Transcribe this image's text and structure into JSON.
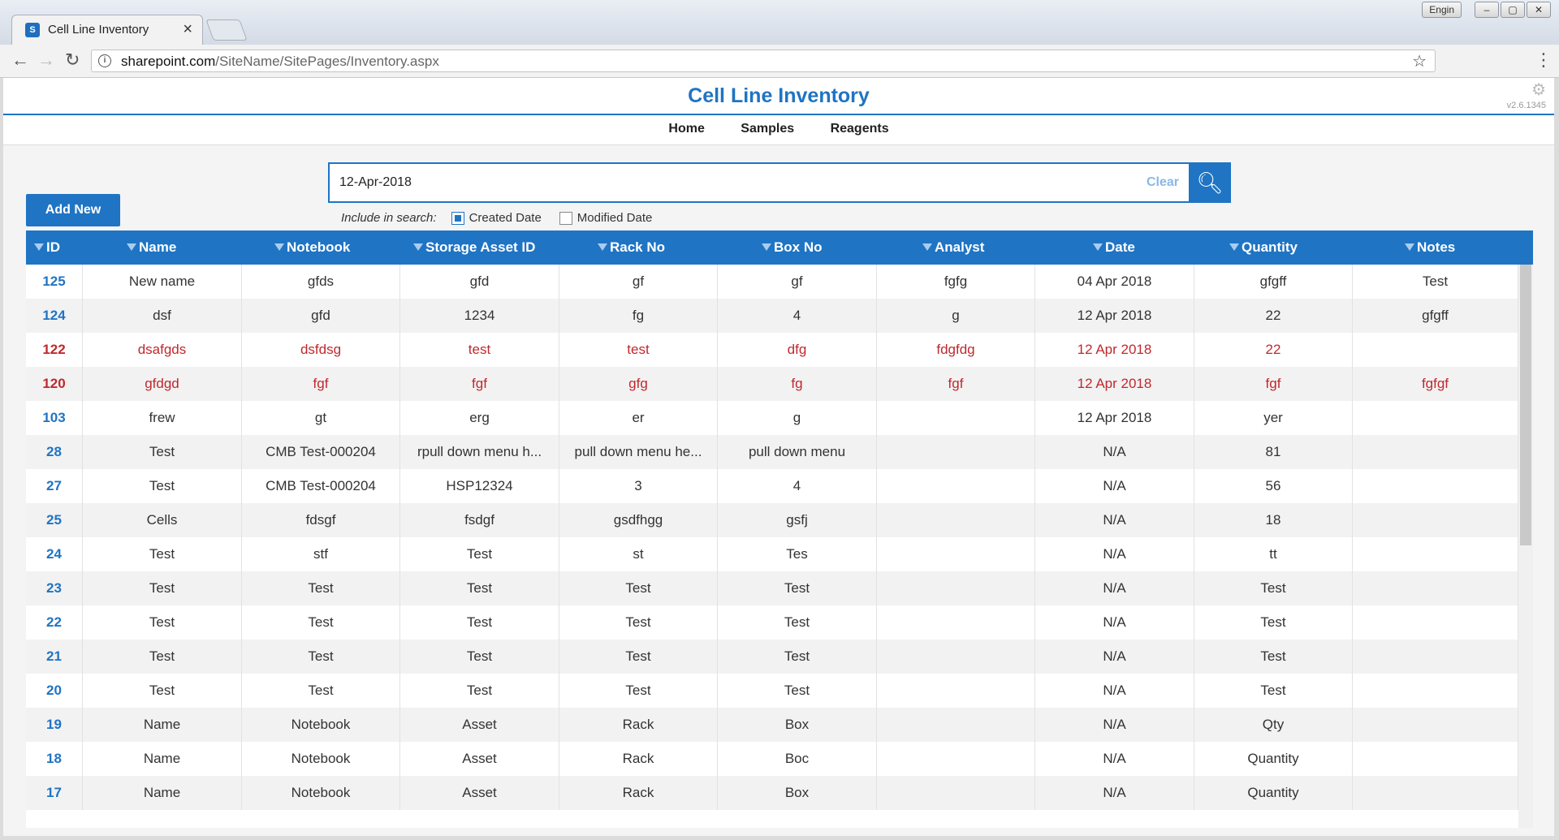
{
  "browser": {
    "tab_title": "Cell Line Inventory",
    "url_host": "sharepoint.com",
    "url_path": "/SiteName/SitePages/Inventory.aspx",
    "lang_button": "Engin"
  },
  "page": {
    "title": "Cell Line Inventory",
    "version": "v2.6.1345",
    "nav": [
      "Home",
      "Samples",
      "Reagents"
    ],
    "add_new_label": "Add New"
  },
  "search": {
    "value": "12-Apr-2018",
    "clear_label": "Clear",
    "include_label": "Include in search:",
    "options": [
      {
        "label": "Created Date",
        "checked": true
      },
      {
        "label": "Modified Date",
        "checked": false
      }
    ]
  },
  "table": {
    "columns": [
      "ID",
      "Name",
      "Notebook",
      "Storage Asset ID",
      "Rack No",
      "Box No",
      "Analyst",
      "Date",
      "Quantity",
      "Notes"
    ],
    "rows": [
      {
        "highlight": false,
        "cells": [
          "125",
          "New name",
          "gfds",
          "gfd",
          "gf",
          "gf",
          "fgfg",
          "04 Apr 2018",
          "gfgff",
          "Test"
        ]
      },
      {
        "highlight": false,
        "cells": [
          "124",
          "dsf",
          "gfd",
          "1234",
          "fg",
          "4",
          "g",
          "12 Apr 2018",
          "22",
          "gfgff"
        ]
      },
      {
        "highlight": true,
        "cells": [
          "122",
          "dsafgds",
          "dsfdsg",
          "test",
          "test",
          "dfg",
          "fdgfdg",
          "12 Apr 2018",
          "22",
          ""
        ]
      },
      {
        "highlight": true,
        "cells": [
          "120",
          "gfdgd",
          "fgf",
          "fgf",
          "gfg",
          "fg",
          "fgf",
          "12 Apr 2018",
          "fgf",
          "fgfgf"
        ]
      },
      {
        "highlight": false,
        "cells": [
          "103",
          "frew",
          "gt",
          "erg",
          "er",
          "g",
          "",
          "12 Apr 2018",
          "yer",
          ""
        ]
      },
      {
        "highlight": false,
        "cells": [
          "28",
          "Test",
          "CMB Test-000204",
          "rpull down menu h...",
          "pull down menu he...",
          "pull down menu",
          "",
          "N/A",
          "81",
          ""
        ]
      },
      {
        "highlight": false,
        "cells": [
          "27",
          "Test",
          "CMB Test-000204",
          "HSP12324",
          "3",
          "4",
          "",
          "N/A",
          "56",
          ""
        ]
      },
      {
        "highlight": false,
        "cells": [
          "25",
          "Cells",
          "fdsgf",
          "fsdgf",
          "gsdfhgg",
          "gsfj",
          "",
          "N/A",
          "18",
          ""
        ]
      },
      {
        "highlight": false,
        "cells": [
          "24",
          "Test",
          "stf",
          "Test",
          "st",
          "Tes",
          "",
          "N/A",
          "tt",
          ""
        ]
      },
      {
        "highlight": false,
        "cells": [
          "23",
          "Test",
          "Test",
          "Test",
          "Test",
          "Test",
          "",
          "N/A",
          "Test",
          ""
        ]
      },
      {
        "highlight": false,
        "cells": [
          "22",
          "Test",
          "Test",
          "Test",
          "Test",
          "Test",
          "",
          "N/A",
          "Test",
          ""
        ]
      },
      {
        "highlight": false,
        "cells": [
          "21",
          "Test",
          "Test",
          "Test",
          "Test",
          "Test",
          "",
          "N/A",
          "Test",
          ""
        ]
      },
      {
        "highlight": false,
        "cells": [
          "20",
          "Test",
          "Test",
          "Test",
          "Test",
          "Test",
          "",
          "N/A",
          "Test",
          ""
        ]
      },
      {
        "highlight": false,
        "cells": [
          "19",
          "Name",
          "Notebook",
          "Asset",
          "Rack",
          "Box",
          "",
          "N/A",
          "Qty",
          ""
        ]
      },
      {
        "highlight": false,
        "cells": [
          "18",
          "Name",
          "Notebook",
          "Asset",
          "Rack",
          "Boc",
          "",
          "N/A",
          "Quantity",
          ""
        ]
      },
      {
        "highlight": false,
        "cells": [
          "17",
          "Name",
          "Notebook",
          "Asset",
          "Rack",
          "Box",
          "",
          "N/A",
          "Quantity",
          ""
        ]
      }
    ]
  },
  "colors": {
    "accent": "#1f74c4",
    "highlight_text": "#c0282d"
  }
}
